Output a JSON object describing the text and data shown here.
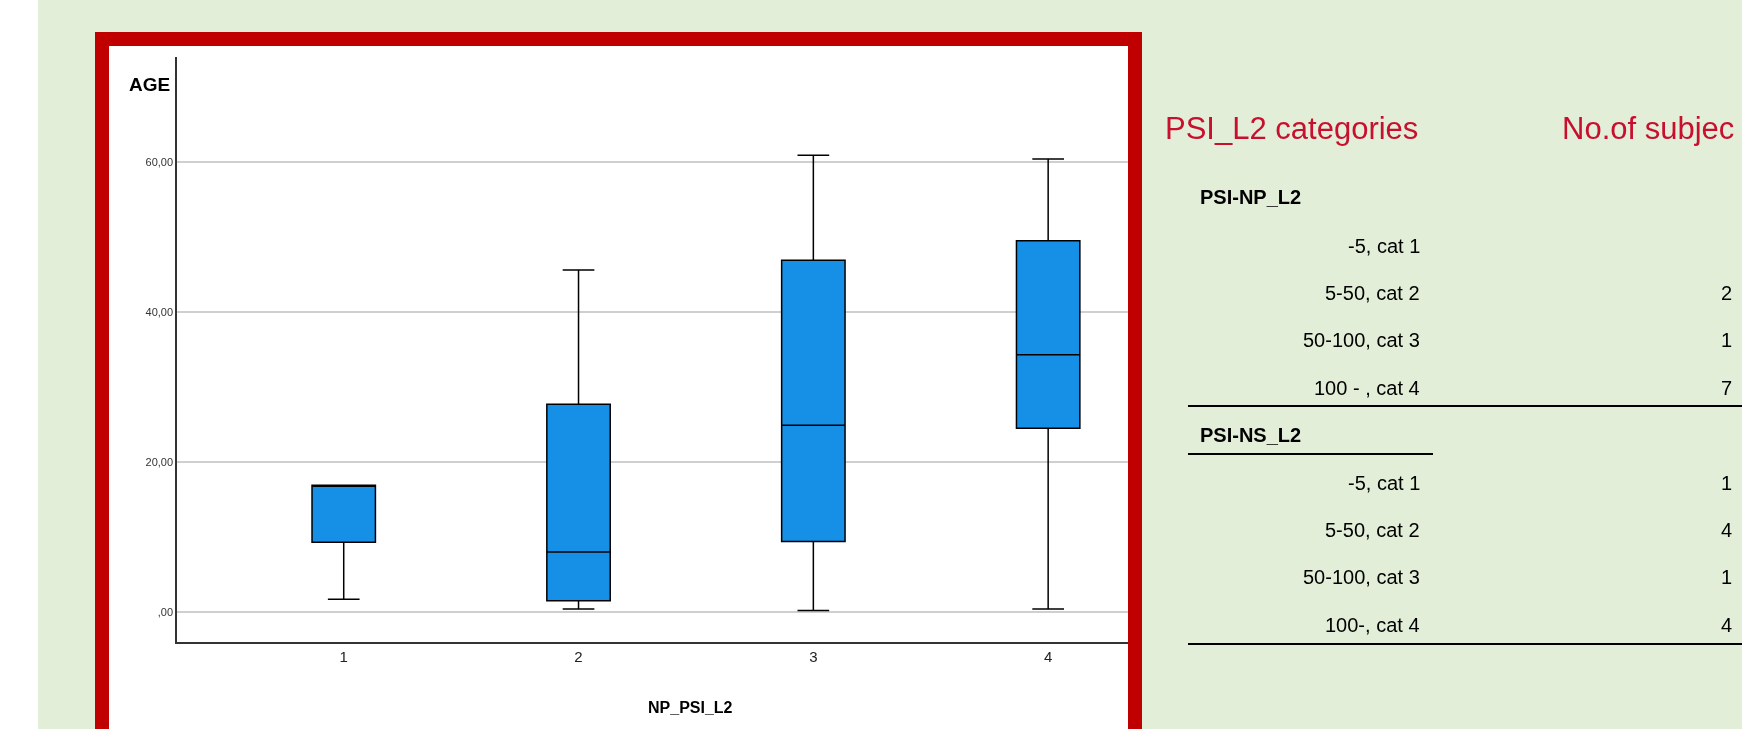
{
  "chart_data": [
    {
      "type": "box",
      "xlabel": "NP_PSI_L2",
      "ylabel": "AGE",
      "categories": [
        "1",
        "2",
        "3",
        "4"
      ],
      "color": "#1590e6",
      "boxes": [
        {
          "low": 1.7,
          "q1": 9.3,
          "median": 16.9,
          "q3": 16.9,
          "high": 16.9
        },
        {
          "low": 0.4,
          "q1": 1.5,
          "median": 8.0,
          "q3": 27.7,
          "high": 45.6
        },
        {
          "low": 0.2,
          "q1": 9.4,
          "median": 24.9,
          "q3": 46.9,
          "high": 60.9
        },
        {
          "low": 0.4,
          "q1": 24.5,
          "median": 34.3,
          "q3": 49.5,
          "high": 60.4
        }
      ],
      "ylim": [
        -4,
        74
      ],
      "yticks": [
        {
          "value": 0,
          "label": ",00"
        },
        {
          "value": 20,
          "label": "20,00"
        },
        {
          "value": 40,
          "label": "40,00"
        },
        {
          "value": 60,
          "label": "60,00"
        }
      ],
      "grid": "y"
    },
    {
      "type": "other",
      "title": "PSI_L2 categories",
      "subtitle": "No.of subjec",
      "annotations": [
        "PSI-NP_L2",
        "-5, cat 1",
        "5-50, cat 2",
        "2",
        "50-100, cat 3",
        "1",
        "100 - , cat 4",
        "7",
        "PSI-NS_L2",
        "-5, cat 1",
        "1",
        "5-50, cat 2",
        "4",
        "50-100, cat 3",
        "1",
        "100-, cat 4",
        "4"
      ]
    }
  ]
}
